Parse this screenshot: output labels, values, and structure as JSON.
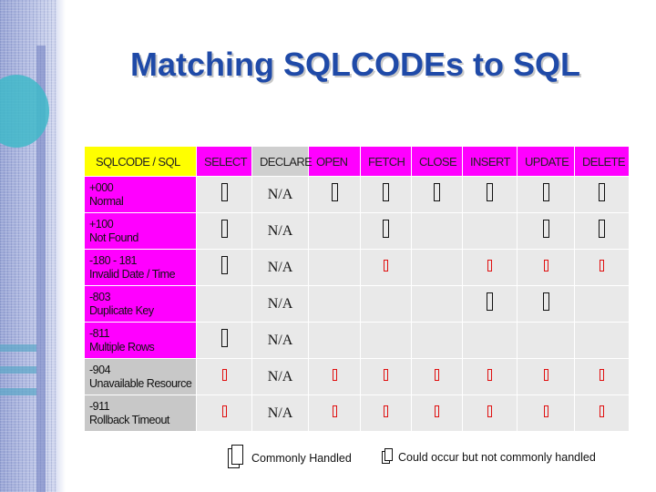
{
  "title": "Matching SQLCODEs to SQL",
  "table": {
    "headers": [
      "SQLCODE / SQL",
      "SELECT",
      "DECLARE",
      "OPEN",
      "FETCH",
      "CLOSE",
      "INSERT",
      "UPDATE",
      "DELETE"
    ],
    "rows": [
      {
        "code": "+000",
        "desc": "Normal",
        "na": "N/A",
        "cells": [
          "big",
          "na",
          "big",
          "big",
          "big",
          "big",
          "big",
          "big"
        ]
      },
      {
        "code": "+100",
        "desc": "Not Found",
        "na": "N/A",
        "cells": [
          "big",
          "na",
          "",
          "big",
          "",
          "",
          "big",
          "big"
        ]
      },
      {
        "code": "-180 - 181",
        "desc": "Invalid Date / Time",
        "na": "N/A",
        "cells": [
          "big",
          "na",
          "",
          "small",
          "",
          "small",
          "small",
          "small"
        ]
      },
      {
        "code": "-803",
        "desc": "Duplicate Key",
        "na": "N/A",
        "cells": [
          "",
          "na",
          "",
          "",
          "",
          "big",
          "big",
          ""
        ]
      },
      {
        "code": "-811",
        "desc": "Multiple Rows",
        "na": "N/A",
        "cells": [
          "big",
          "na",
          "",
          "",
          "",
          "",
          "",
          ""
        ]
      },
      {
        "code": "-904",
        "desc": "Unavailable Resource",
        "na": "N/A",
        "cells": [
          "small",
          "na",
          "small",
          "small",
          "small",
          "small",
          "small",
          "small"
        ]
      },
      {
        "code": "-911",
        "desc": "Rollback Timeout",
        "na": "N/A",
        "cells": [
          "small",
          "na",
          "small",
          "small",
          "small",
          "small",
          "small",
          "small"
        ]
      }
    ]
  },
  "legend": {
    "commonly_handled": "Commonly Handled",
    "could_occur": "Could occur but not commonly handled"
  },
  "colors": {
    "title": "#1f4aa8",
    "corner_header": "#ffff00",
    "magenta": "#ff00ff",
    "gray": "#c8c8c8",
    "small_mark": "#e01010"
  }
}
